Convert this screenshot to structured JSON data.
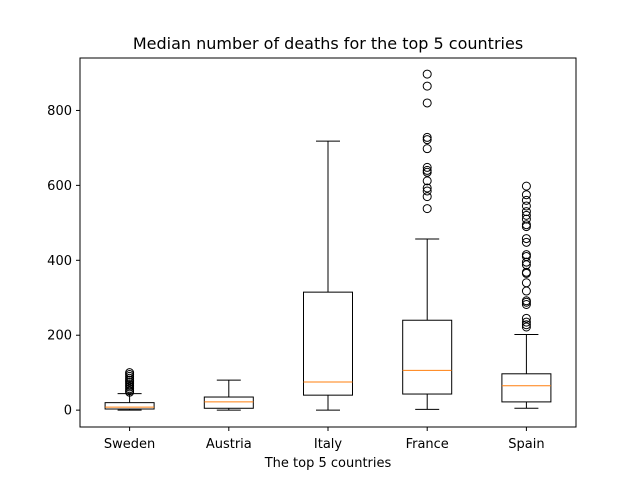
{
  "chart_data": {
    "type": "box",
    "title": "Median number of deaths for the top 5 countries",
    "xlabel": "The top 5 countries",
    "ylabel": "",
    "ylim": [
      -45,
      940
    ],
    "yticks": [
      0,
      200,
      400,
      600,
      800
    ],
    "grid": false,
    "categories": [
      "Sweden",
      "Austria",
      "Italy",
      "France",
      "Spain"
    ],
    "boxes": [
      {
        "name": "Sweden",
        "whisker_low": 0,
        "q1": 3,
        "median": 8,
        "q3": 20,
        "whisker_high": 44,
        "outliers": [
          48,
          52,
          57,
          62,
          66,
          70,
          75,
          80,
          85,
          90,
          95,
          100
        ]
      },
      {
        "name": "Austria",
        "whisker_low": 0,
        "q1": 5,
        "median": 22,
        "q3": 35,
        "whisker_high": 80,
        "outliers": []
      },
      {
        "name": "Italy",
        "whisker_low": 0,
        "q1": 40,
        "median": 75,
        "q3": 315,
        "whisker_high": 718,
        "outliers": []
      },
      {
        "name": "France",
        "whisker_low": 2,
        "q1": 43,
        "median": 106,
        "q3": 240,
        "whisker_high": 457,
        "outliers": [
          538,
          570,
          585,
          593,
          612,
          635,
          640,
          648,
          698,
          722,
          728,
          820,
          865,
          897
        ]
      },
      {
        "name": "Spain",
        "whisker_low": 5,
        "q1": 22,
        "median": 65,
        "q3": 97,
        "whisker_high": 202,
        "outliers": [
          222,
          228,
          235,
          245,
          282,
          288,
          292,
          318,
          340,
          365,
          368,
          388,
          395,
          410,
          415,
          448,
          458,
          490,
          495,
          510,
          520,
          530,
          545,
          560,
          575,
          598
        ]
      }
    ],
    "colors": {
      "box": "#000000",
      "median": "#ff7f0e",
      "outlier": "#000000"
    }
  }
}
